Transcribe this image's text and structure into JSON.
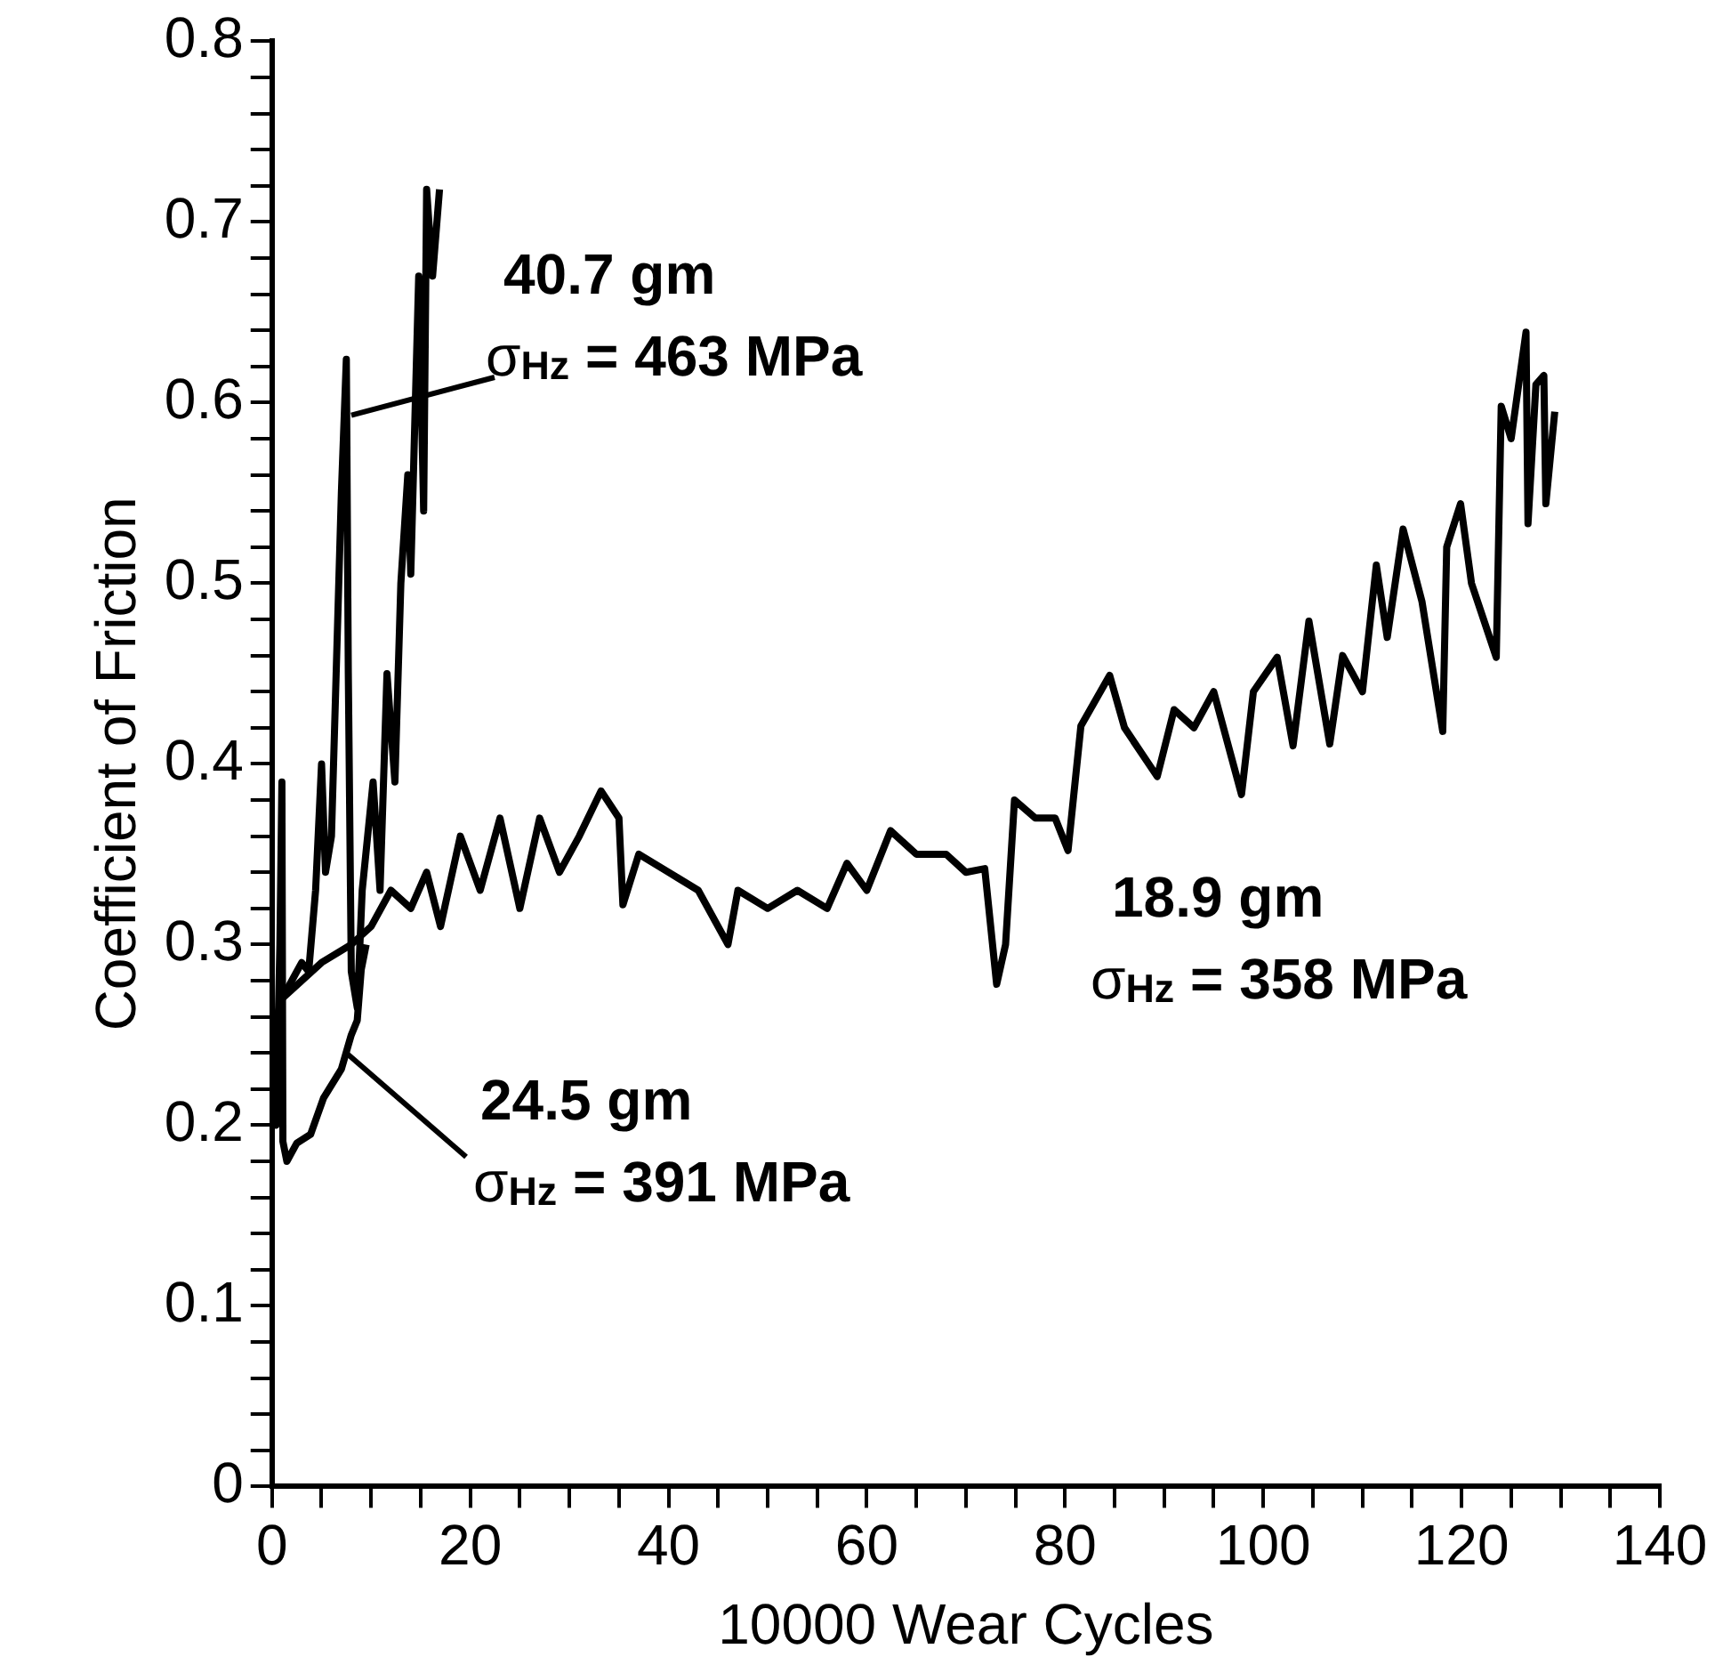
{
  "chart_data": {
    "type": "line",
    "xlabel": "10000 Wear Cycles",
    "ylabel": "Coefficient of Friction",
    "xlim": [
      0,
      140
    ],
    "xticks": [
      0,
      {
        "value": 5,
        "label": null
      },
      {
        "value": 10,
        "label": null
      },
      {
        "value": 15,
        "label": null
      },
      20,
      {
        "value": 25,
        "label": null
      },
      {
        "value": 30,
        "label": null
      },
      {
        "value": 35,
        "label": null
      },
      40,
      {
        "value": 45,
        "label": null
      },
      {
        "value": 50,
        "label": null
      },
      {
        "value": 55,
        "label": null
      },
      60,
      {
        "value": 65,
        "label": null
      },
      {
        "value": 70,
        "label": null
      },
      {
        "value": 75,
        "label": null
      },
      80,
      {
        "value": 85,
        "label": null
      },
      {
        "value": 90,
        "label": null
      },
      {
        "value": 95,
        "label": null
      },
      100,
      {
        "value": 105,
        "label": null
      },
      {
        "value": 110,
        "label": null
      },
      {
        "value": 115,
        "label": null
      },
      120,
      {
        "value": 125,
        "label": null
      },
      {
        "value": 130,
        "label": null
      },
      {
        "value": 135,
        "label": null
      },
      140
    ],
    "ylim": [
      0,
      0.8
    ],
    "yticks": [
      0,
      {
        "value": 0.02,
        "label": null
      },
      {
        "value": 0.04,
        "label": null
      },
      {
        "value": 0.06,
        "label": null
      },
      {
        "value": 0.08,
        "label": null
      },
      0.1,
      {
        "value": 0.12,
        "label": null
      },
      {
        "value": 0.14,
        "label": null
      },
      {
        "value": 0.16,
        "label": null
      },
      {
        "value": 0.18,
        "label": null
      },
      0.2,
      {
        "value": 0.22,
        "label": null
      },
      {
        "value": 0.24,
        "label": null
      },
      {
        "value": 0.26,
        "label": null
      },
      {
        "value": 0.28,
        "label": null
      },
      0.3,
      {
        "value": 0.32,
        "label": null
      },
      {
        "value": 0.34,
        "label": null
      },
      {
        "value": 0.36,
        "label": null
      },
      {
        "value": 0.38,
        "label": null
      },
      0.4,
      {
        "value": 0.42,
        "label": null
      },
      {
        "value": 0.44,
        "label": null
      },
      {
        "value": 0.46,
        "label": null
      },
      {
        "value": 0.48,
        "label": null
      },
      0.5,
      {
        "value": 0.52,
        "label": null
      },
      {
        "value": 0.54,
        "label": null
      },
      {
        "value": 0.56,
        "label": null
      },
      {
        "value": 0.58,
        "label": null
      },
      0.6,
      {
        "value": 0.62,
        "label": null
      },
      {
        "value": 0.64,
        "label": null
      },
      {
        "value": 0.66,
        "label": null
      },
      {
        "value": 0.68,
        "label": null
      },
      0.7,
      {
        "value": 0.72,
        "label": null
      },
      {
        "value": 0.74,
        "label": null
      },
      {
        "value": 0.76,
        "label": null
      },
      {
        "value": 0.78,
        "label": null
      },
      0.8
    ],
    "grid": false,
    "legend": false,
    "series": [
      {
        "color": "#000000",
        "x": [
          0,
          1,
          2,
          3,
          3.7,
          4.4,
          5,
          5.4,
          6,
          7,
          7.5,
          7.7,
          8,
          8.6,
          9.1,
          10.2,
          10.9,
          11.6,
          12.4,
          13,
          13.7,
          14,
          14.8,
          15.3,
          15.6,
          16.2,
          16.9
        ],
        "values": [
          0.25,
          0.27,
          0.28,
          0.29,
          0.285,
          0.33,
          0.4,
          0.34,
          0.36,
          0.55,
          0.624,
          0.45,
          0.285,
          0.265,
          0.33,
          0.39,
          0.33,
          0.45,
          0.39,
          0.5,
          0.56,
          0.505,
          0.67,
          0.54,
          0.718,
          0.67,
          0.718
        ]
      },
      {
        "color": "#000000",
        "x": [
          0,
          0.4,
          0.8,
          1,
          1.1,
          1.5,
          2.5,
          3.9,
          5.2,
          7,
          8,
          8.6,
          9,
          9.5
        ],
        "values": [
          0.22,
          0.2,
          0.3,
          0.39,
          0.191,
          0.18,
          0.19,
          0.195,
          0.215,
          0.231,
          0.25,
          0.258,
          0.286,
          0.3
        ]
      },
      {
        "color": "#000000",
        "x": [
          0,
          1,
          3,
          5,
          8,
          10,
          12,
          14,
          15.6,
          17,
          19,
          21,
          23,
          25,
          27,
          29,
          31,
          33.2,
          35,
          35.4,
          37,
          40,
          43,
          46,
          47,
          50,
          53,
          56,
          58,
          60,
          62.4,
          65,
          68,
          70,
          71.9,
          73.1,
          74,
          74.9,
          77,
          79,
          80.3,
          81.6,
          84.5,
          86,
          89.3,
          91,
          93,
          95,
          97.8,
          99,
          101.4,
          103,
          104.6,
          106.7,
          108,
          110,
          111.4,
          112.5,
          114.1,
          116,
          118.1,
          118.5,
          119.9,
          121,
          123.5,
          124,
          125,
          126.5,
          126.7,
          127.5,
          128.3,
          128.5,
          129.4
        ],
        "values": [
          0.24,
          0.27,
          0.28,
          0.29,
          0.3,
          0.31,
          0.33,
          0.32,
          0.34,
          0.31,
          0.36,
          0.33,
          0.37,
          0.32,
          0.37,
          0.34,
          0.36,
          0.385,
          0.37,
          0.322,
          0.35,
          0.34,
          0.33,
          0.3,
          0.33,
          0.32,
          0.33,
          0.32,
          0.345,
          0.33,
          0.363,
          0.35,
          0.35,
          0.34,
          0.342,
          0.278,
          0.3,
          0.38,
          0.37,
          0.37,
          0.352,
          0.421,
          0.449,
          0.42,
          0.393,
          0.43,
          0.42,
          0.44,
          0.383,
          0.44,
          0.459,
          0.41,
          0.479,
          0.411,
          0.46,
          0.44,
          0.51,
          0.47,
          0.53,
          0.49,
          0.418,
          0.52,
          0.544,
          0.5,
          0.459,
          0.598,
          0.58,
          0.639,
          0.533,
          0.61,
          0.615,
          0.544,
          0.595
        ]
      }
    ],
    "annotations": [
      {
        "text": "40.7 gm",
        "x": 8,
        "y": 0.593
      },
      "σ$_{Hz}$ = 463 MPa",
      {
        "text": "24.5 gm",
        "x": 7.5,
        "y": 0.24
      },
      "σ$_{Hz}$ = 391 MPa",
      "18.9 gm",
      "σ$_{Hz}$ = 358 MPa"
    ]
  }
}
